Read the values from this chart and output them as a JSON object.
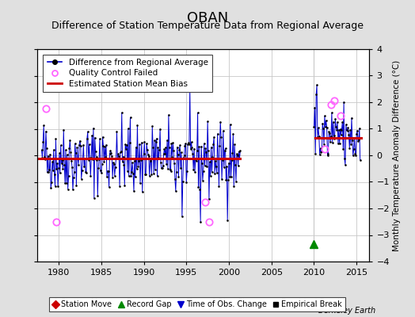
{
  "title": "OBAN",
  "subtitle": "Difference of Station Temperature Data from Regional Average",
  "ylabel": "Monthly Temperature Anomaly Difference (°C)",
  "xlabel_credit": "Berkeley Earth",
  "xlim": [
    1977.5,
    2016.5
  ],
  "ylim": [
    -4,
    4
  ],
  "yticks": [
    -4,
    -3,
    -2,
    -1,
    0,
    1,
    2,
    3,
    4
  ],
  "xticks": [
    1980,
    1985,
    1990,
    1995,
    2000,
    2005,
    2010,
    2015
  ],
  "bias_period1_start": 1977.5,
  "bias_period1_end": 2001.3,
  "bias_period1_val": -0.12,
  "bias_period2_start": 2010.1,
  "bias_period2_end": 2015.5,
  "bias_period2_val": 0.65,
  "record_gap_x": 2010.0,
  "record_gap_y": -3.35,
  "vertical_line_x": 2010.0,
  "qc_failed_points": [
    [
      1978.5,
      1.75
    ],
    [
      1979.7,
      -2.5
    ],
    [
      1997.2,
      -1.75
    ],
    [
      1997.7,
      -2.5
    ],
    [
      2011.3,
      0.25
    ],
    [
      2012.0,
      1.9
    ],
    [
      2012.4,
      2.05
    ],
    [
      2013.1,
      1.5
    ]
  ],
  "main_line_color": "#0000cc",
  "main_dot_color": "#000000",
  "bias_line_color": "#cc0000",
  "qc_color": "#ff66ff",
  "background_color": "#e0e0e0",
  "plot_bg_color": "#ffffff",
  "grid_color": "#c8c8c8",
  "title_fontsize": 13,
  "subtitle_fontsize": 9,
  "legend_fontsize": 7.5,
  "tick_fontsize": 8,
  "seed": 42
}
